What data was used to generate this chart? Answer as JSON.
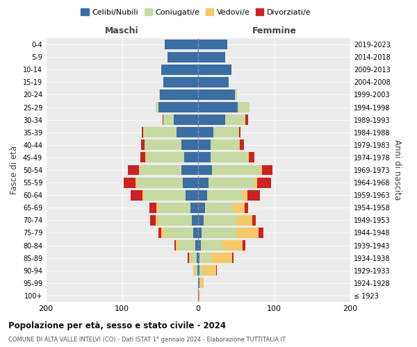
{
  "age_groups": [
    "100+",
    "95-99",
    "90-94",
    "85-89",
    "80-84",
    "75-79",
    "70-74",
    "65-69",
    "60-64",
    "55-59",
    "50-54",
    "45-49",
    "40-44",
    "35-39",
    "30-34",
    "25-29",
    "20-24",
    "15-19",
    "10-14",
    "5-9",
    "0-4"
  ],
  "birth_years": [
    "≤ 1923",
    "1924-1928",
    "1929-1933",
    "1934-1938",
    "1939-1943",
    "1944-1948",
    "1949-1953",
    "1954-1958",
    "1959-1963",
    "1964-1968",
    "1969-1973",
    "1974-1978",
    "1979-1983",
    "1984-1988",
    "1989-1993",
    "1994-1998",
    "1999-2003",
    "2004-2008",
    "2009-2013",
    "2014-2018",
    "2019-2023"
  ],
  "colors": {
    "celibi": "#3a6ea5",
    "coniugati": "#c5d9a0",
    "vedovi": "#f5c96a",
    "divorziati": "#cc2222"
  },
  "maschi": {
    "celibi": [
      0,
      0,
      1,
      2,
      4,
      6,
      8,
      10,
      16,
      20,
      22,
      18,
      22,
      28,
      32,
      52,
      50,
      46,
      48,
      40,
      44
    ],
    "coniugati": [
      0,
      0,
      3,
      8,
      22,
      38,
      44,
      42,
      55,
      60,
      55,
      50,
      48,
      44,
      14,
      4,
      1,
      0,
      0,
      0,
      0
    ],
    "vedovi": [
      0,
      0,
      2,
      2,
      3,
      4,
      4,
      3,
      2,
      2,
      1,
      1,
      0,
      0,
      0,
      0,
      0,
      0,
      0,
      0,
      0
    ],
    "divorziati": [
      0,
      0,
      0,
      2,
      2,
      4,
      7,
      9,
      16,
      16,
      14,
      7,
      5,
      2,
      1,
      0,
      0,
      0,
      0,
      0,
      0
    ]
  },
  "femmine": {
    "celibi": [
      1,
      2,
      2,
      2,
      4,
      5,
      7,
      9,
      12,
      14,
      18,
      16,
      16,
      20,
      36,
      52,
      48,
      40,
      44,
      36,
      38
    ],
    "coniugati": [
      0,
      1,
      4,
      15,
      28,
      46,
      44,
      38,
      46,
      60,
      64,
      50,
      38,
      34,
      26,
      16,
      3,
      0,
      0,
      0,
      0
    ],
    "vedovi": [
      2,
      4,
      18,
      28,
      26,
      28,
      20,
      14,
      7,
      4,
      2,
      1,
      1,
      0,
      0,
      0,
      0,
      0,
      0,
      0,
      0
    ],
    "divorziati": [
      0,
      0,
      1,
      2,
      4,
      7,
      5,
      5,
      16,
      18,
      14,
      7,
      5,
      2,
      4,
      0,
      0,
      0,
      0,
      0,
      0
    ]
  },
  "title": "Popolazione per età, sesso e stato civile - 2024",
  "subtitle": "COMUNE DI ALTA VALLE INTELVI (CO) - Dati ISTAT 1° gennaio 2024 - Elaborazione TUTTITALIA.IT",
  "xlabel_maschi": "Maschi",
  "xlabel_femmine": "Femmine",
  "ylabel_left": "Fasce di età",
  "ylabel_right": "Anni di nascita",
  "xlim": 200,
  "legend_labels": [
    "Celibi/Nubili",
    "Coniugati/e",
    "Vedovi/e",
    "Divorziati/e"
  ],
  "bg_color": "#ebebeb"
}
